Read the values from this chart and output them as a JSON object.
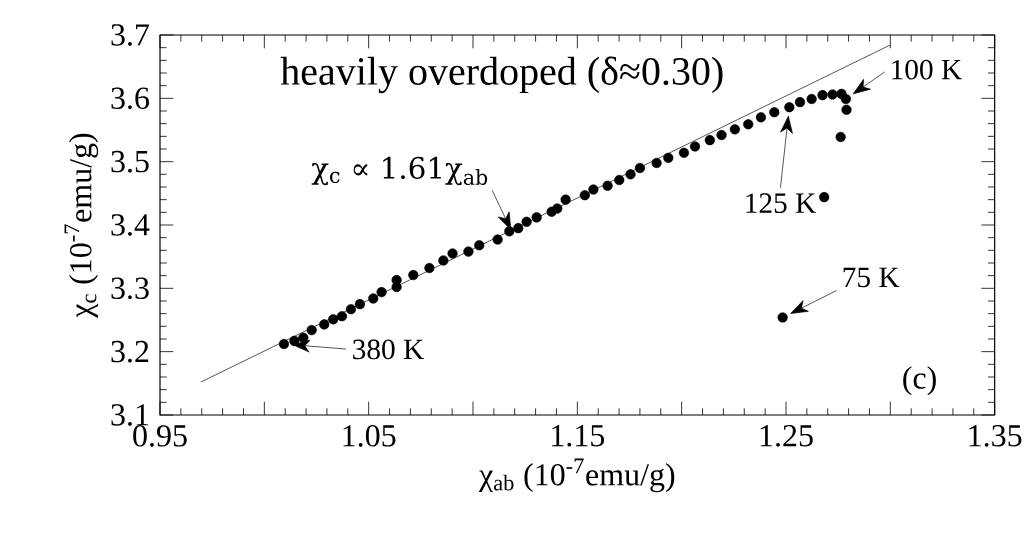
{
  "chart_data": {
    "type": "scatter",
    "xlabel": "χ$_{ab}$ (10$^{-7}$emu/g)",
    "ylabel": "χ$_{c}$ (10$^{-7}$emu/g)",
    "xlim": [
      0.95,
      1.35
    ],
    "ylim": [
      3.1,
      3.7
    ],
    "xticks": [
      0.95,
      {
        "value": 1.0,
        "label": null
      },
      1.05,
      {
        "value": 1.1,
        "label": null
      },
      1.15,
      {
        "value": 1.2,
        "label": null
      },
      1.25,
      {
        "value": 1.3,
        "label": null
      },
      1.35
    ],
    "yticks": [
      3.1,
      3.2,
      3.3,
      3.4,
      3.5,
      3.6,
      3.7
    ],
    "series": [
      {
        "color": "#000000",
        "marker": "circle",
        "x": [
          1.0094,
          1.0144,
          1.0187,
          1.0227,
          1.0287,
          1.033,
          1.0372,
          1.0415,
          1.0458,
          1.0522,
          1.0562,
          1.0634,
          1.0634,
          1.0714,
          1.0791,
          1.0858,
          1.0902,
          1.0978,
          1.103,
          1.1118,
          1.1174,
          1.1217,
          1.1257,
          1.1305,
          1.1377,
          1.1404,
          1.1444,
          1.1536,
          1.1577,
          1.1645,
          1.1701,
          1.1755,
          1.18,
          1.188,
          1.1936,
          1.2011,
          1.2064,
          1.2135,
          1.2191,
          1.2255,
          1.2319,
          1.238,
          1.2444,
          1.2516,
          1.2567,
          1.2623,
          1.2675,
          1.2723,
          1.2766,
          1.2787,
          1.279,
          1.2762,
          1.2683,
          1.2484
        ],
        "values": [
          3.212,
          3.217,
          3.222,
          3.234,
          3.243,
          3.251,
          3.256,
          3.267,
          3.275,
          3.284,
          3.294,
          3.313,
          3.302,
          3.321,
          3.332,
          3.344,
          3.355,
          3.358,
          3.368,
          3.377,
          3.39,
          3.395,
          3.405,
          3.412,
          3.421,
          3.426,
          3.44,
          3.447,
          3.456,
          3.462,
          3.471,
          3.48,
          3.49,
          3.498,
          3.506,
          3.514,
          3.524,
          3.534,
          3.542,
          3.551,
          3.559,
          3.57,
          3.578,
          3.586,
          3.594,
          3.599,
          3.605,
          3.606,
          3.607,
          3.599,
          3.582,
          3.539,
          3.444,
          3.254
        ]
      },
      {
        "type": "line",
        "color": "#000000",
        "x": [
          0.9696,
          1.2998
        ],
        "values": [
          3.152,
          3.684
        ]
      }
    ],
    "annotations": [
      "heavily overdoped (δ≈0.30)",
      {
        "text": "χ$_{c}$ ∝ 1.61χ$_{ab}$",
        "x": 1.12,
        "y": 3.38
      },
      {
        "text": "380 K",
        "x": 1.0094,
        "y": 3.212
      },
      {
        "text": "125 K",
        "x": 1.2516,
        "y": 3.586
      },
      {
        "text": "100 K",
        "x": 1.2787,
        "y": 3.599
      },
      {
        "text": "75 K",
        "x": 1.2484,
        "y": 3.254
      },
      "(c)"
    ]
  }
}
